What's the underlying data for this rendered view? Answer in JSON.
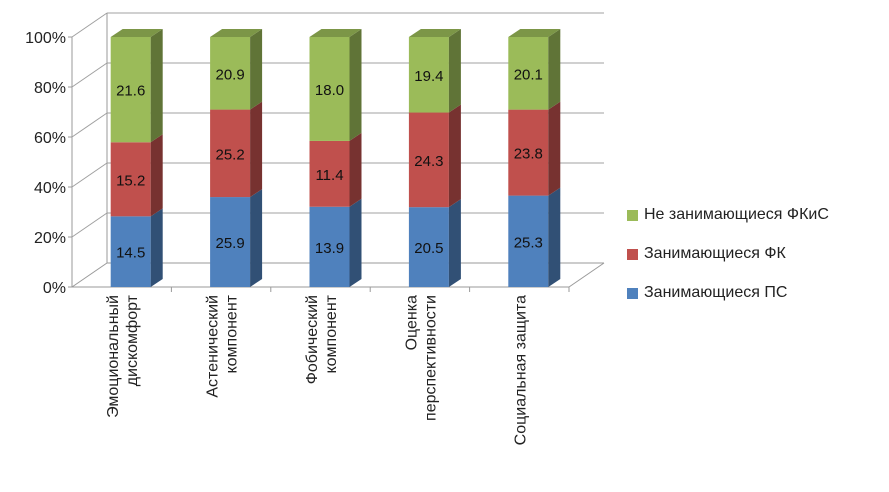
{
  "chart_data": {
    "type": "bar",
    "stacked": "percent",
    "categories": [
      [
        "Эмоциональный",
        "дискомфорт"
      ],
      [
        "Астенический",
        "компонент"
      ],
      [
        "Фобический",
        "компонент"
      ],
      [
        "Оценка",
        "перспективности"
      ],
      [
        "Социальная защита"
      ]
    ],
    "series": [
      {
        "name": "Занимающиеся ПС",
        "color": "#4f81bd",
        "values": [
          14.5,
          25.9,
          13.9,
          20.5,
          25.3
        ]
      },
      {
        "name": "Занимающиеся ФК",
        "color": "#c0504d",
        "values": [
          15.2,
          25.2,
          11.4,
          24.3,
          23.8
        ]
      },
      {
        "name": "Не занимающиеся ФКиС",
        "color": "#9bbb59",
        "values": [
          21.6,
          20.9,
          18.0,
          19.4,
          20.1
        ]
      }
    ],
    "y_ticks": [
      "0%",
      "20%",
      "40%",
      "60%",
      "80%",
      "100%"
    ],
    "ylim": [
      0,
      100
    ],
    "grid": true,
    "legend_position": "right"
  }
}
